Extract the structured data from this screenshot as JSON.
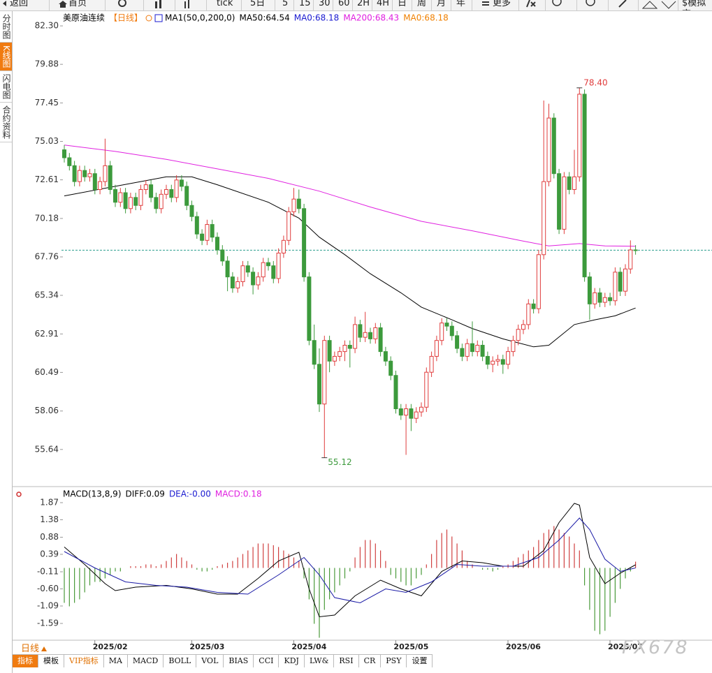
{
  "toolbar": {
    "items": [
      "返回",
      "首页",
      "tick",
      "5日",
      "5",
      "15",
      "30",
      "60",
      "2H",
      "4H",
      "日",
      "周",
      "月",
      "年",
      "更多",
      "$模拟交"
    ]
  },
  "sidebar": {
    "tabs": [
      "分时图",
      "K线图",
      "闪电图",
      "合约资料"
    ]
  },
  "chart_data": [
    {
      "type": "candlestick",
      "title": "美原油连续",
      "period": "【日线】",
      "period_color": "#f07b10",
      "legend": [
        {
          "text": "MA1(50,0,200,0)",
          "color": "#000000"
        },
        {
          "text": "MA50:64.54",
          "color": "#000000"
        },
        {
          "text": "MA0:68.18",
          "color": "#1a1ad0"
        },
        {
          "text": "MA200:68.43",
          "color": "#e020e0"
        },
        {
          "text": "MA0:68.18",
          "color": "#f08000"
        }
      ],
      "up_color": "#e03c3c",
      "down_color": "#3c9a3c",
      "open": [
        74.5,
        74.0,
        73.5,
        72.5,
        73.2,
        72.8,
        73.0,
        72.0,
        72.5,
        73.5,
        72.0,
        71.2,
        71.8,
        70.8,
        71.5,
        71.0,
        72.0,
        72.3,
        71.5,
        70.8,
        71.7,
        72.0,
        71.5,
        72.6,
        72.2,
        71.0,
        70.3,
        69.2,
        68.8,
        69.8,
        69.0,
        68.2,
        67.5,
        66.5,
        65.8,
        66.2,
        67.2,
        66.8,
        66.0,
        66.5,
        67.4,
        67.2,
        66.4,
        68.0,
        68.8,
        70.6,
        71.4,
        70.8,
        66.5,
        62.5,
        61.0,
        58.5,
        62.5,
        61.2,
        61.5,
        61.8,
        62.2,
        62.0,
        63.5,
        62.7,
        63.0,
        62.6,
        63.3,
        61.8,
        61.2,
        60.3,
        58.2,
        57.8,
        58.2,
        57.6,
        58.0,
        58.3,
        60.5,
        61.5,
        62.5,
        63.6,
        63.4,
        62.8,
        62.0,
        61.5,
        62.3,
        61.8,
        62.2,
        61.5,
        61.0,
        61.2,
        61.3,
        61.0,
        61.8,
        62.5,
        63.2,
        63.5,
        64.8,
        64.5,
        67.9,
        72.5,
        76.5,
        73.0,
        69.5,
        72.8,
        72.0,
        72.8,
        78.0,
        66.5,
        64.8,
        65.5,
        64.9,
        65.2,
        65.0,
        66.8,
        65.6,
        67.0,
        68.2
      ],
      "high": [
        74.8,
        74.3,
        73.8,
        73.5,
        73.5,
        73.3,
        73.3,
        72.8,
        75.2,
        73.8,
        72.3,
        72.1,
        72.1,
        71.8,
        71.8,
        72.3,
        72.6,
        72.6,
        71.8,
        72.0,
        72.3,
        72.3,
        72.9,
        72.9,
        72.5,
        71.3,
        70.6,
        69.5,
        70.1,
        70.1,
        69.3,
        68.5,
        67.8,
        66.8,
        66.5,
        67.5,
        67.5,
        67.1,
        66.8,
        67.7,
        67.7,
        67.5,
        68.3,
        69.1,
        70.9,
        72.1,
        72.0,
        71.1,
        66.8,
        63.5,
        62.0,
        62.8,
        62.8,
        61.8,
        62.1,
        62.5,
        62.5,
        64.0,
        63.8,
        64.3,
        63.3,
        63.6,
        63.6,
        62.1,
        61.5,
        60.6,
        58.5,
        58.5,
        58.5,
        58.3,
        58.6,
        60.8,
        61.8,
        62.8,
        63.9,
        63.9,
        63.7,
        63.1,
        62.3,
        62.6,
        63.7,
        62.5,
        62.5,
        61.8,
        61.5,
        61.6,
        61.6,
        62.1,
        62.8,
        63.5,
        63.8,
        65.1,
        65.1,
        68.2,
        77.6,
        77.4,
        76.8,
        73.3,
        73.1,
        73.1,
        74.5,
        78.4,
        78.3,
        66.8,
        65.8,
        65.8,
        65.5,
        65.5,
        67.1,
        67.1,
        67.3,
        68.8,
        68.5
      ],
      "low": [
        73.7,
        73.2,
        72.2,
        72.2,
        72.5,
        72.5,
        71.7,
        71.7,
        72.2,
        71.7,
        70.9,
        70.9,
        70.5,
        70.5,
        70.7,
        70.7,
        71.7,
        71.2,
        70.5,
        70.5,
        71.4,
        71.2,
        71.2,
        71.9,
        70.7,
        70.0,
        68.9,
        68.5,
        68.5,
        68.7,
        67.9,
        67.2,
        65.6,
        65.5,
        65.5,
        65.9,
        66.5,
        65.4,
        65.7,
        66.2,
        66.9,
        66.1,
        66.1,
        67.7,
        68.5,
        70.3,
        70.5,
        66.2,
        62.2,
        60.7,
        58.0,
        55.12,
        60.5,
        60.9,
        61.2,
        61.2,
        60.8,
        61.7,
        62.4,
        62.4,
        62.3,
        62.3,
        61.5,
        60.9,
        60.0,
        57.9,
        57.5,
        55.3,
        56.8,
        57.3,
        57.7,
        58.0,
        60.2,
        61.2,
        62.2,
        63.1,
        62.5,
        61.7,
        61.2,
        61.2,
        61.5,
        61.5,
        61.2,
        60.7,
        60.5,
        60.9,
        60.4,
        60.7,
        61.5,
        62.2,
        62.9,
        63.2,
        64.2,
        64.2,
        67.6,
        72.2,
        72.7,
        69.2,
        69.2,
        71.7,
        71.7,
        72.5,
        66.2,
        63.8,
        64.5,
        64.6,
        64.6,
        64.7,
        64.7,
        65.3,
        65.3,
        66.7,
        67.9
      ],
      "close": [
        74.0,
        73.5,
        72.5,
        73.2,
        72.8,
        73.0,
        72.0,
        72.5,
        73.5,
        72.0,
        71.2,
        71.8,
        70.8,
        71.5,
        71.0,
        72.0,
        72.3,
        71.5,
        70.8,
        71.7,
        72.0,
        71.5,
        72.6,
        72.2,
        71.0,
        70.3,
        69.2,
        68.8,
        69.8,
        69.0,
        68.2,
        67.5,
        66.5,
        65.8,
        66.2,
        67.2,
        66.8,
        66.0,
        66.5,
        67.4,
        67.2,
        66.4,
        68.0,
        68.8,
        70.6,
        71.4,
        70.8,
        66.5,
        62.5,
        61.0,
        58.5,
        62.5,
        61.2,
        61.5,
        61.8,
        62.2,
        62.0,
        63.5,
        62.7,
        63.0,
        62.6,
        63.3,
        61.8,
        61.2,
        60.3,
        58.2,
        57.8,
        58.2,
        57.6,
        58.0,
        58.3,
        60.5,
        61.5,
        62.5,
        63.6,
        63.4,
        62.8,
        62.0,
        61.5,
        62.3,
        61.8,
        62.2,
        61.5,
        61.0,
        61.2,
        61.3,
        61.0,
        61.8,
        62.5,
        63.2,
        63.5,
        64.8,
        64.5,
        67.9,
        72.5,
        76.5,
        73.0,
        69.5,
        72.8,
        72.0,
        72.8,
        78.0,
        66.5,
        64.8,
        65.5,
        64.9,
        65.2,
        65.0,
        66.8,
        65.6,
        67.0,
        68.2,
        68.18
      ],
      "high_label": "78.40",
      "low_label": "55.12",
      "lines": [
        {
          "color": "#000000",
          "x": [
            0,
            10,
            20,
            25,
            30,
            40,
            46,
            50,
            55,
            60,
            66,
            70,
            76,
            80,
            86,
            92,
            95,
            100,
            104,
            108,
            112
          ],
          "values": [
            71.6,
            72.2,
            72.8,
            72.8,
            72.3,
            71.2,
            70.2,
            69.0,
            67.9,
            66.7,
            65.5,
            64.6,
            63.8,
            63.25,
            62.6,
            62.1,
            62.2,
            63.5,
            63.8,
            64.05,
            64.54
          ]
        },
        {
          "color": "#e020e0",
          "x": [
            0,
            10,
            20,
            30,
            40,
            50,
            60,
            70,
            80,
            90,
            95,
            101,
            106,
            112
          ],
          "values": [
            74.8,
            74.4,
            73.9,
            73.3,
            72.7,
            71.9,
            70.9,
            70.0,
            69.4,
            68.75,
            68.45,
            68.6,
            68.45,
            68.43
          ]
        }
      ],
      "price_line": 68.18,
      "price_line_color": "#2a9d8f",
      "xlim": [
        -0.55,
        126.44
      ],
      "ylim": [
        53.39,
        83.05
      ],
      "yticks": [
        {
          "value": 82.3,
          "label": "82.30"
        },
        79.88,
        77.45,
        75.03,
        72.61,
        70.18,
        67.76,
        65.34,
        62.91,
        60.49,
        58.06,
        55.64
      ],
      "xticks": [
        {
          "value": 9,
          "label": "2025/02"
        },
        {
          "value": 28,
          "label": "2025/03"
        },
        {
          "value": 48,
          "label": "2025/04"
        },
        {
          "value": 68,
          "label": "2025/05"
        },
        {
          "value": 90,
          "label": "2025/06"
        },
        {
          "value": 110,
          "label": "2025/07"
        }
      ]
    },
    {
      "type": "macd",
      "title": "MACD(13,8,9)",
      "legend": [
        {
          "text": "DIFF:0.09",
          "color": "#000000"
        },
        {
          "text": "DEA:-0.00",
          "color": "#1a1ad0"
        },
        {
          "text": "MACD:0.18",
          "color": "#e020e0"
        }
      ],
      "up_color": "#d04040",
      "down_color": "#4a9a3a",
      "histogram": [
        -1.0,
        -1.1,
        -1.0,
        -0.9,
        -0.7,
        -0.5,
        -0.4,
        -0.4,
        -0.3,
        -0.2,
        -0.1,
        -0.1,
        0.0,
        0.05,
        0.05,
        0.05,
        0.1,
        0.1,
        0.05,
        0.1,
        0.2,
        0.3,
        0.4,
        0.3,
        0.2,
        0.1,
        -0.05,
        -0.1,
        -0.1,
        -0.05,
        0.05,
        0.1,
        0.15,
        0.2,
        0.3,
        0.4,
        0.5,
        0.6,
        0.7,
        0.7,
        0.7,
        0.65,
        0.6,
        0.5,
        0.4,
        0.3,
        0.2,
        -0.3,
        -0.9,
        -1.6,
        -2.0,
        -1.2,
        -0.9,
        -0.7,
        -0.5,
        -0.3,
        -0.1,
        0.3,
        0.6,
        0.8,
        0.8,
        0.7,
        0.5,
        0.2,
        -0.2,
        -0.3,
        -0.4,
        -0.5,
        -0.5,
        -0.3,
        -0.2,
        0.1,
        0.4,
        0.8,
        1.0,
        1.1,
        0.9,
        0.7,
        0.5,
        0.2,
        0.1,
        0.0,
        -0.05,
        -0.05,
        -0.1,
        -0.05,
        0.05,
        0.1,
        0.2,
        0.3,
        0.4,
        0.5,
        0.6,
        0.8,
        1.0,
        1.1,
        1.2,
        1.1,
        1.0,
        0.9,
        0.7,
        0.5,
        -0.5,
        -1.2,
        -1.8,
        -1.9,
        -1.8,
        -1.4,
        -1.0,
        -0.6,
        -0.3,
        -0.1,
        0.18
      ],
      "lines": [
        {
          "color": "#000000",
          "x": [
            0,
            4,
            8,
            10,
            14,
            20,
            25,
            30,
            34,
            38,
            42,
            46,
            48,
            50,
            53,
            57,
            62,
            66,
            70,
            74,
            78,
            82,
            86,
            90,
            94,
            97,
            100,
            101,
            103,
            106,
            109,
            112
          ],
          "values": [
            0.6,
            0.1,
            -0.45,
            -0.65,
            -0.55,
            -0.5,
            -0.6,
            -0.75,
            -0.75,
            -0.3,
            0.2,
            0.45,
            -0.6,
            -1.4,
            -1.35,
            -0.8,
            -0.35,
            -0.6,
            -0.8,
            -0.1,
            0.2,
            0.15,
            0.05,
            0.05,
            0.5,
            1.3,
            1.85,
            1.8,
            0.3,
            -0.45,
            -0.15,
            0.09
          ]
        },
        {
          "color": "#1a1aa6",
          "x": [
            0,
            6,
            12,
            18,
            24,
            30,
            36,
            42,
            47,
            50,
            53,
            58,
            63,
            67,
            72,
            77,
            82,
            88,
            93,
            97,
            101,
            103,
            106,
            109,
            112
          ],
          "values": [
            0.47,
            0.0,
            -0.4,
            -0.5,
            -0.55,
            -0.7,
            -0.75,
            -0.2,
            0.3,
            -0.2,
            -0.85,
            -1.0,
            -0.6,
            -0.7,
            -0.4,
            0.1,
            0.05,
            0.05,
            0.3,
            0.8,
            1.43,
            1.1,
            0.25,
            -0.1,
            0
          ]
        }
      ],
      "xlim": [
        -0.55,
        126.44
      ],
      "ylim": [
        -2.03,
        2.23
      ],
      "yticks": [
        1.87,
        1.38,
        0.88,
        0.39,
        -0.11,
        {
          "value": -0.6,
          "label": "-0.60"
        },
        -1.09,
        -1.59
      ]
    }
  ],
  "bottom": {
    "period": "日线",
    "tabs": [
      "指标",
      "模板",
      "VIP指标",
      "MA",
      "MACD",
      "BOLL",
      "VOL",
      "BIAS",
      "CCI",
      "KDJ",
      "LW&",
      "RSI",
      "CR",
      "PSY",
      "设置"
    ]
  },
  "watermark": "FX678"
}
